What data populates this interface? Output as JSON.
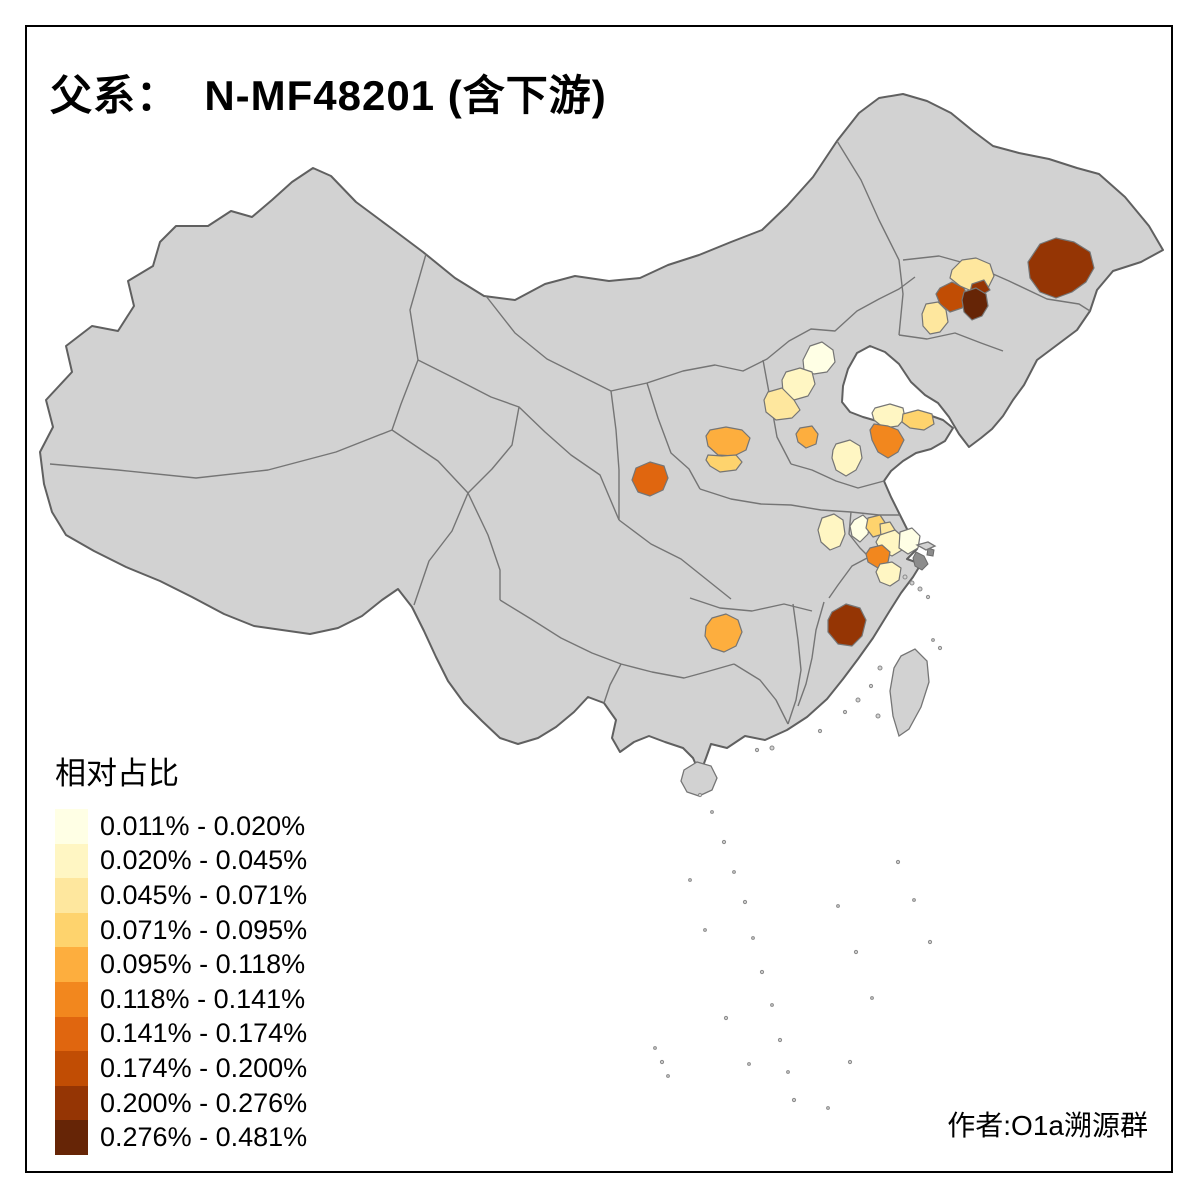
{
  "title": "父系：  N-MF48201 (含下游)",
  "attribution": "作者:O1a溯源群",
  "legend": {
    "title": "相对占比",
    "classes": [
      {
        "label": "0.011% - 0.020%",
        "color": "#FFFFE5"
      },
      {
        "label": "0.020% - 0.045%",
        "color": "#FFF6C3"
      },
      {
        "label": "0.045% - 0.071%",
        "color": "#FEE79E"
      },
      {
        "label": "0.071% - 0.095%",
        "color": "#FED36D"
      },
      {
        "label": "0.095% - 0.118%",
        "color": "#FDAE3E"
      },
      {
        "label": "0.118% - 0.141%",
        "color": "#F2871E"
      },
      {
        "label": "0.141% - 0.174%",
        "color": "#E0660F"
      },
      {
        "label": "0.174% - 0.200%",
        "color": "#C14D04"
      },
      {
        "label": "0.200% - 0.276%",
        "color": "#953504"
      },
      {
        "label": "0.276% - 0.481%",
        "color": "#662506"
      }
    ]
  },
  "map": {
    "base_fill": "#D2D2D2",
    "border_color": "#606060",
    "inner_border_color": "#757575",
    "urban_fill": "#8C8C8C",
    "sea_color": "#FFFFFF",
    "regions": [
      {
        "id": "r1",
        "class": 1
      },
      {
        "id": "r2",
        "class": 2
      },
      {
        "id": "r3",
        "class": 3
      },
      {
        "id": "r4",
        "class": 5
      },
      {
        "id": "r5",
        "class": 5
      },
      {
        "id": "r6",
        "class": 4
      },
      {
        "id": "r7",
        "class": 7
      },
      {
        "id": "r8",
        "class": 2
      },
      {
        "id": "r9",
        "class": 4
      },
      {
        "id": "r10",
        "class": 6
      },
      {
        "id": "r11",
        "class": 2
      },
      {
        "id": "r12",
        "class": 9
      },
      {
        "id": "r13",
        "class": 3
      },
      {
        "id": "r14",
        "class": 8
      },
      {
        "id": "r15",
        "class": 10
      },
      {
        "id": "r16",
        "class": 9
      },
      {
        "id": "r17",
        "class": 3
      },
      {
        "id": "r18",
        "class": 2
      },
      {
        "id": "r19",
        "class": 1
      },
      {
        "id": "r20",
        "class": 4
      },
      {
        "id": "r21",
        "class": 3
      },
      {
        "id": "r22",
        "class": 2
      },
      {
        "id": "r23",
        "class": 1
      },
      {
        "id": "r24",
        "class": 6
      },
      {
        "id": "r25",
        "class": 2
      },
      {
        "id": "r26",
        "class": 5
      },
      {
        "id": "r27",
        "class": 9
      }
    ]
  }
}
